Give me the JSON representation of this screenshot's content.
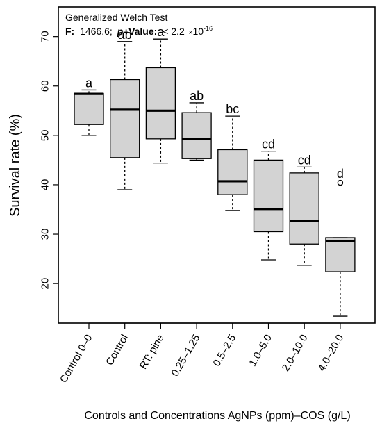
{
  "chart_data": {
    "type": "box",
    "annotation": {
      "title": "Generalized Welch Test",
      "f_label": "F:",
      "f_value": "1466.6;",
      "p_label": "p",
      "p_rest": "–Value:",
      "p_value": "< 2.2",
      "p_times": "×",
      "p_base": "10",
      "p_exp": "-16"
    },
    "ylabel": "Survival rate (%)",
    "xlabel": "Controls and Concentrations AgNPs (ppm)–COS (g/L)",
    "ylim": [
      12,
      76
    ],
    "yticks": [
      20,
      30,
      40,
      50,
      60,
      70
    ],
    "categories": [
      "Control 0–0",
      "Control",
      "RT: pine",
      "0.25–1.25",
      "0.5–2.5",
      "1.0–5.0",
      "2.0–10.0",
      "4.0–20.0"
    ],
    "boxes": [
      {
        "whisker_low": 50.0,
        "q1": 52.2,
        "median": 58.4,
        "q3": 58.5,
        "whisker_high": 59.2,
        "outliers": [],
        "group": "a"
      },
      {
        "whisker_low": 39.0,
        "q1": 45.5,
        "median": 55.2,
        "q3": 61.3,
        "whisker_high": 69.0,
        "outliers": [],
        "group": "ab"
      },
      {
        "whisker_low": 44.4,
        "q1": 49.3,
        "median": 55.0,
        "q3": 63.7,
        "whisker_high": 69.5,
        "outliers": [],
        "group": "a"
      },
      {
        "whisker_low": 45.0,
        "q1": 45.3,
        "median": 49.3,
        "q3": 54.6,
        "whisker_high": 56.6,
        "outliers": [],
        "group": "ab"
      },
      {
        "whisker_low": 34.8,
        "q1": 38.0,
        "median": 40.7,
        "q3": 47.1,
        "whisker_high": 53.9,
        "outliers": [],
        "group": "bc"
      },
      {
        "whisker_low": 24.8,
        "q1": 30.5,
        "median": 35.1,
        "q3": 45.0,
        "whisker_high": 46.8,
        "outliers": [],
        "group": "cd"
      },
      {
        "whisker_low": 23.7,
        "q1": 28.0,
        "median": 32.7,
        "q3": 42.4,
        "whisker_high": 43.6,
        "outliers": [],
        "group": "cd"
      },
      {
        "whisker_low": 13.4,
        "q1": 22.4,
        "median": 28.6,
        "q3": 29.3,
        "whisker_high": 29.3,
        "outliers": [
          40.4
        ],
        "group": "d"
      }
    ],
    "colors": {
      "box_fill": "#d3d3d3",
      "stroke": "#000000"
    }
  }
}
